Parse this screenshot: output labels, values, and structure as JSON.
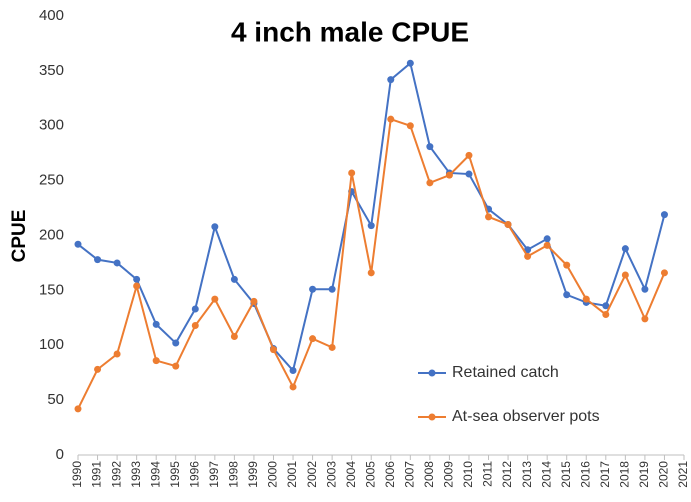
{
  "chart_data": {
    "type": "line",
    "title": "4 inch male CPUE",
    "y_label": "CPUE",
    "x": [
      1990,
      1991,
      1992,
      1993,
      1994,
      1995,
      1996,
      1997,
      1998,
      1999,
      2000,
      2001,
      2002,
      2003,
      2004,
      2005,
      2006,
      2007,
      2008,
      2009,
      2010,
      2011,
      2012,
      2013,
      2014,
      2015,
      2016,
      2017,
      2018,
      2019,
      2020
    ],
    "series": [
      {
        "name": "Retained catch",
        "color": "#4472c4",
        "values": [
          192,
          178,
          175,
          160,
          119,
          102,
          133,
          208,
          160,
          138,
          97,
          77,
          151,
          151,
          240,
          209,
          342,
          357,
          281,
          257,
          256,
          224,
          210,
          187,
          197,
          146,
          139,
          136,
          188,
          151,
          219
        ]
      },
      {
        "name": "At-sea observer pots",
        "color": "#ed7d31",
        "values": [
          42,
          78,
          92,
          154,
          86,
          81,
          118,
          142,
          108,
          140,
          96,
          62,
          106,
          98,
          257,
          166,
          306,
          300,
          248,
          255,
          273,
          217,
          210,
          181,
          191,
          173,
          142,
          128,
          164,
          124,
          166
        ]
      }
    ],
    "xlim": [
      1990,
      2021
    ],
    "xticks": [
      1990,
      1991,
      1992,
      1993,
      1994,
      1995,
      1996,
      1997,
      1998,
      1999,
      2000,
      2001,
      2002,
      2003,
      2004,
      2005,
      2006,
      2007,
      2008,
      2009,
      2010,
      2011,
      2012,
      2013,
      2014,
      2015,
      2016,
      2017,
      2018,
      2019,
      2020,
      2021
    ],
    "ylim": [
      0,
      400
    ],
    "yticks": [
      0,
      50,
      100,
      150,
      200,
      250,
      300,
      350,
      400
    ],
    "grid": false,
    "legend": "lower right"
  }
}
